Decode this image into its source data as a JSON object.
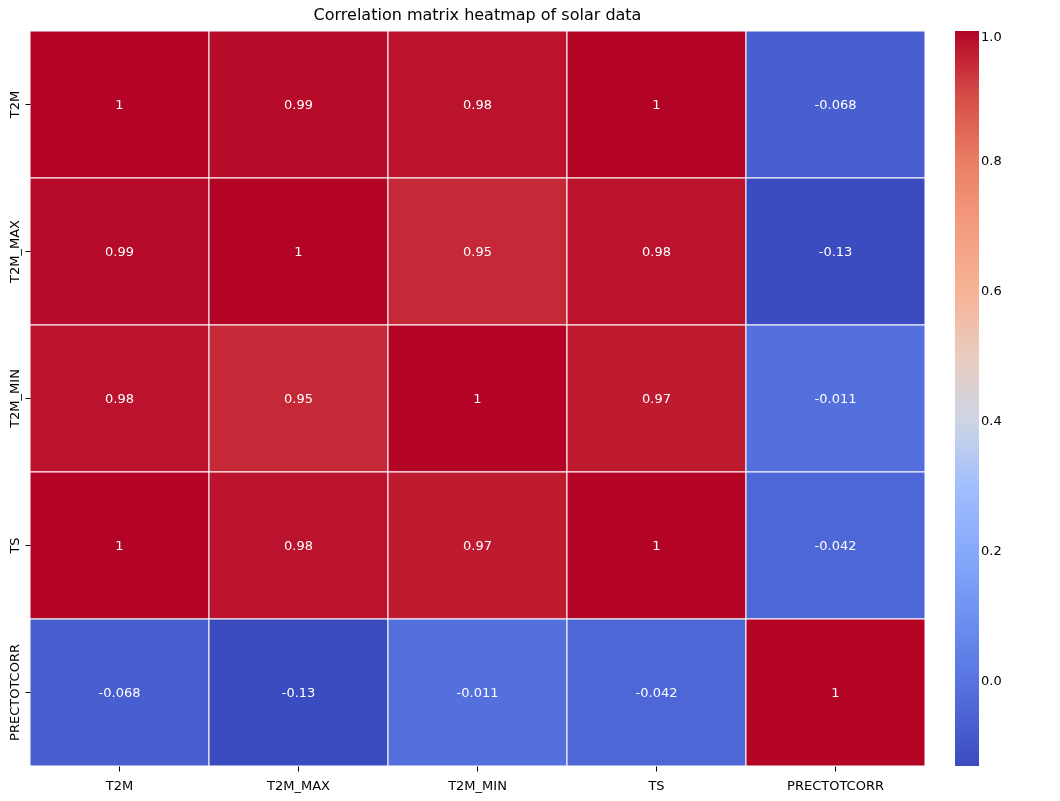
{
  "chart_data": {
    "type": "heatmap",
    "title": "Correlation matrix heatmap of solar data",
    "categories": [
      "T2M",
      "T2M_MAX",
      "T2M_MIN",
      "TS",
      "PRECTOTCORR"
    ],
    "y_categories": [
      "T2M",
      "T2M_MAX",
      "T2M_MIN",
      "TS",
      "PRECTOTCORR"
    ],
    "cells": [
      [
        1,
        0.99,
        0.98,
        1,
        -0.068
      ],
      [
        0.99,
        1,
        0.95,
        0.98,
        -0.13
      ],
      [
        0.98,
        0.95,
        1,
        0.97,
        -0.011
      ],
      [
        1,
        0.98,
        0.97,
        1,
        -0.042
      ],
      [
        -0.068,
        -0.13,
        -0.011,
        -0.042,
        1
      ]
    ],
    "data_labels": true,
    "clim": [
      -0.13,
      1.0
    ],
    "cticks": [
      {
        "value": 0,
        "label": "0.0"
      },
      {
        "value": 0.2,
        "label": "0.2"
      },
      {
        "value": 0.4,
        "label": "0.4"
      },
      {
        "value": 0.6,
        "label": "0.6"
      },
      {
        "value": 0.8,
        "label": "0.8"
      },
      {
        "value": 1,
        "label": "1.0"
      }
    ]
  }
}
